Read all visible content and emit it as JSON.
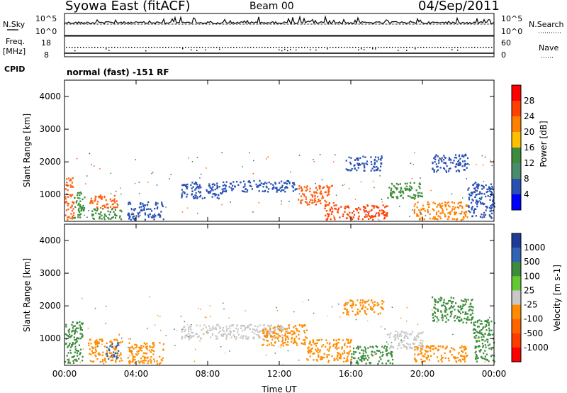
{
  "header": {
    "title": "Syowa East (fitACF)",
    "beam": "Beam 00",
    "date": "04/Sep/2011"
  },
  "summary_panel": {
    "left_labels": {
      "nsky": "N.Sky",
      "freq_line1": "Freq.",
      "freq_line2": "[MHz]",
      "cpid": "CPID"
    },
    "right_labels": {
      "nsearch": "N.Search",
      "nave": "Nave"
    },
    "noise_ticks": [
      "10^5",
      "10^0"
    ],
    "freq_ticks": [
      "18",
      "8"
    ],
    "nave_ticks": [
      "60",
      "0"
    ],
    "cpid_text": "normal (fast) -151 RF"
  },
  "chart_data": [
    {
      "type": "heatmap",
      "name": "power",
      "ylabel": "Slant Range [km]",
      "xlabel": "",
      "x_ticks": [
        "00:00",
        "04:00",
        "08:00",
        "12:00",
        "16:00",
        "20:00",
        "00:00"
      ],
      "xlim_hours": [
        0,
        24
      ],
      "ylim": [
        180,
        4500
      ],
      "y_ticks": [
        1000,
        2000,
        3000,
        4000
      ],
      "colorbar": {
        "label": "Power [dB]",
        "ticks": [
          "28",
          "24",
          "20",
          "16",
          "12",
          "8",
          "4"
        ],
        "colors": [
          "#ff0000",
          "#ff4000",
          "#ff8000",
          "#ffc000",
          "#3c8c3c",
          "#4a8c6a",
          "#2850b4",
          "#0000ff"
        ]
      },
      "regions": [
        {
          "t0": 0.0,
          "t1": 0.5,
          "r0": 250,
          "r1": 1550,
          "c": "#ff6010"
        },
        {
          "t0": 0.5,
          "t1": 1.1,
          "r0": 250,
          "r1": 1100,
          "c": "#3c8c3c"
        },
        {
          "t0": 1.3,
          "t1": 3.0,
          "r0": 600,
          "r1": 1000,
          "c": "#ff6010"
        },
        {
          "t0": 1.5,
          "t1": 3.2,
          "r0": 250,
          "r1": 600,
          "c": "#3c8c3c"
        },
        {
          "t0": 3.5,
          "t1": 5.5,
          "r0": 250,
          "r1": 800,
          "c": "#2850b4"
        },
        {
          "t0": 6.5,
          "t1": 8.8,
          "r0": 900,
          "r1": 1400,
          "c": "#2850b4"
        },
        {
          "t0": 8.8,
          "t1": 13.0,
          "r0": 1100,
          "r1": 1450,
          "c": "#2850b4"
        },
        {
          "t0": 13.0,
          "t1": 15.0,
          "r0": 700,
          "r1": 1300,
          "c": "#ff6010"
        },
        {
          "t0": 14.5,
          "t1": 18.0,
          "r0": 250,
          "r1": 700,
          "c": "#ff4000"
        },
        {
          "t0": 15.7,
          "t1": 17.7,
          "r0": 1750,
          "r1": 2200,
          "c": "#2850b4"
        },
        {
          "t0": 18.0,
          "t1": 20.0,
          "r0": 900,
          "r1": 1400,
          "c": "#3c8c3c"
        },
        {
          "t0": 19.5,
          "t1": 22.5,
          "r0": 250,
          "r1": 800,
          "c": "#ff8000"
        },
        {
          "t0": 20.5,
          "t1": 22.5,
          "r0": 1700,
          "r1": 2250,
          "c": "#2850b4"
        },
        {
          "t0": 22.5,
          "t1": 24.0,
          "r0": 300,
          "r1": 1400,
          "c": "#2850b4"
        }
      ]
    },
    {
      "type": "heatmap",
      "name": "velocity",
      "ylabel": "Slant Range [km]",
      "xlabel": "Time UT",
      "x_ticks": [
        "00:00",
        "04:00",
        "08:00",
        "12:00",
        "16:00",
        "20:00",
        "00:00"
      ],
      "xlim_hours": [
        0,
        24
      ],
      "ylim": [
        180,
        4500
      ],
      "y_ticks": [
        1000,
        2000,
        3000,
        4000
      ],
      "colorbar": {
        "label": "Velocity [m s-1]",
        "ticks": [
          "1000",
          "500",
          "100",
          "25",
          "-25",
          "-100",
          "-500",
          "-1000"
        ],
        "colors": [
          "#1e3c96",
          "#3264b4",
          "#3c8c3c",
          "#64c832",
          "#c8c8c8",
          "#ff8c00",
          "#ff6400",
          "#ff3c00",
          "#ff0000"
        ]
      },
      "regions": [
        {
          "t0": 0.0,
          "t1": 1.0,
          "r0": 250,
          "r1": 1550,
          "c": "#3c8c3c"
        },
        {
          "t0": 1.3,
          "t1": 3.2,
          "r0": 300,
          "r1": 1000,
          "c": "#ff8c00"
        },
        {
          "t0": 2.3,
          "t1": 3.0,
          "r0": 400,
          "r1": 900,
          "c": "#3264b4"
        },
        {
          "t0": 3.5,
          "t1": 5.5,
          "r0": 250,
          "r1": 900,
          "c": "#ff8c00"
        },
        {
          "t0": 6.5,
          "t1": 12.5,
          "r0": 1000,
          "r1": 1450,
          "c": "#c8c8c8"
        },
        {
          "t0": 11.0,
          "t1": 13.5,
          "r0": 800,
          "r1": 1450,
          "c": "#ff8c00"
        },
        {
          "t0": 13.5,
          "t1": 16.0,
          "r0": 300,
          "r1": 1000,
          "c": "#ff8c00"
        },
        {
          "t0": 16.0,
          "t1": 18.3,
          "r0": 250,
          "r1": 800,
          "c": "#3c8c3c"
        },
        {
          "t0": 15.5,
          "t1": 17.8,
          "r0": 1750,
          "r1": 2200,
          "c": "#ff8c00"
        },
        {
          "t0": 18.0,
          "t1": 20.0,
          "r0": 700,
          "r1": 1300,
          "c": "#c8c8c8"
        },
        {
          "t0": 19.5,
          "t1": 22.5,
          "r0": 300,
          "r1": 800,
          "c": "#ff8c00"
        },
        {
          "t0": 20.5,
          "t1": 22.8,
          "r0": 1500,
          "r1": 2300,
          "c": "#3c8c3c"
        },
        {
          "t0": 22.8,
          "t1": 24.0,
          "r0": 300,
          "r1": 1600,
          "c": "#3c8c3c"
        }
      ]
    }
  ]
}
